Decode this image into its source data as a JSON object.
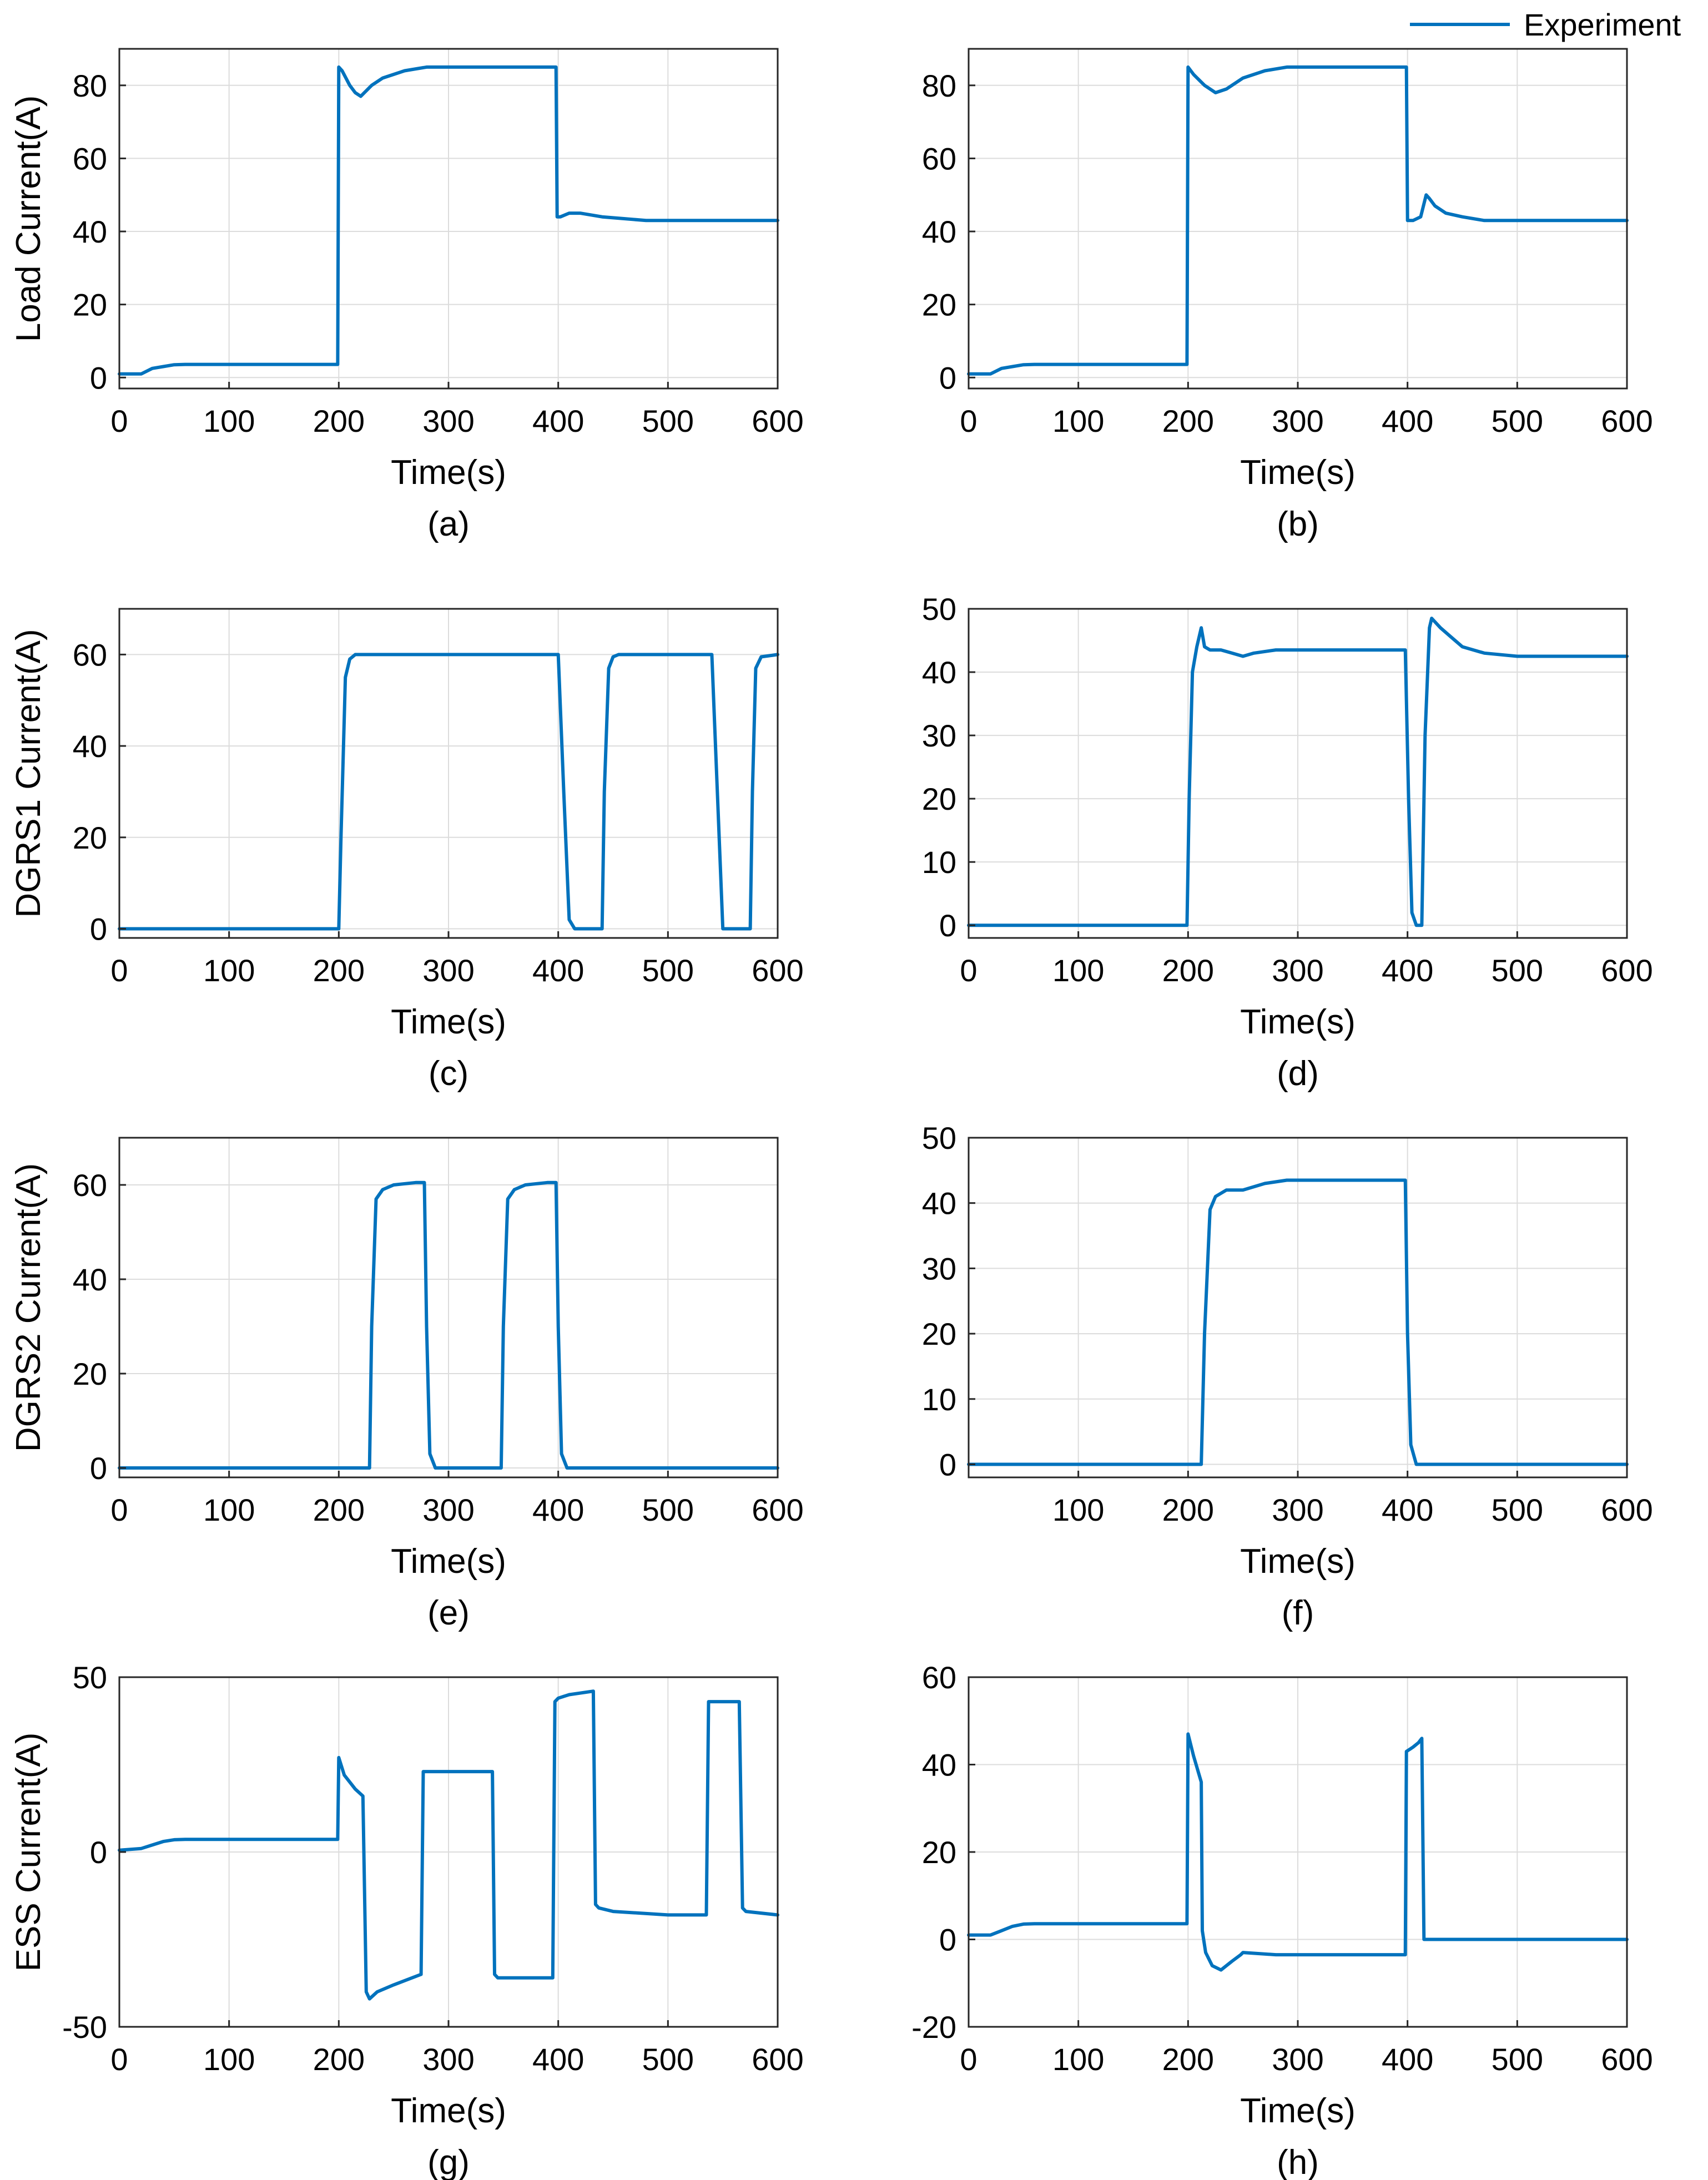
{
  "legend": {
    "label": "Experiment",
    "color": "#0072BD"
  },
  "chart_data": [
    {
      "type": "line",
      "panel_label": "(a)",
      "xlabel": "Time(s)",
      "ylabel": "Load Current(A)",
      "xlim": [
        0,
        600
      ],
      "ylim": [
        -3,
        90
      ],
      "xticks": [
        "0",
        "100",
        "200",
        "300",
        "400",
        "500",
        "600"
      ],
      "xtick_values": [
        0,
        100,
        200,
        300,
        400,
        500,
        600
      ],
      "yticks": [
        "0",
        "20",
        "40",
        "60",
        "80"
      ],
      "ytick_values": [
        0,
        20,
        40,
        60,
        80
      ],
      "grid": true,
      "series": [
        {
          "name": "Experiment",
          "x": [
            0,
            20,
            30,
            40,
            50,
            60,
            100,
            150,
            199,
            200,
            203,
            210,
            215,
            220,
            230,
            240,
            260,
            280,
            300,
            320,
            340,
            360,
            380,
            398,
            399,
            402,
            410,
            420,
            440,
            460,
            480,
            500,
            520,
            540,
            560,
            580,
            600
          ],
          "y": [
            1,
            1,
            2.5,
            3,
            3.5,
            3.6,
            3.6,
            3.6,
            3.6,
            85,
            84,
            80,
            78,
            77,
            80,
            82,
            84,
            85,
            85,
            85,
            85,
            85,
            85,
            85,
            44,
            44,
            45,
            45,
            44,
            43.5,
            43,
            43,
            43,
            43,
            43,
            43,
            43
          ]
        }
      ]
    },
    {
      "type": "line",
      "panel_label": "(b)",
      "xlabel": "Time(s)",
      "ylabel": "",
      "xlim": [
        0,
        600
      ],
      "ylim": [
        -3,
        90
      ],
      "xticks": [
        "0",
        "100",
        "200",
        "300",
        "400",
        "500",
        "600"
      ],
      "xtick_values": [
        0,
        100,
        200,
        300,
        400,
        500,
        600
      ],
      "yticks": [
        "0",
        "20",
        "40",
        "60",
        "80"
      ],
      "ytick_values": [
        0,
        20,
        40,
        60,
        80
      ],
      "grid": true,
      "series": [
        {
          "name": "Experiment",
          "x": [
            0,
            20,
            30,
            40,
            50,
            60,
            100,
            150,
            199,
            200,
            205,
            215,
            225,
            235,
            250,
            270,
            290,
            320,
            350,
            380,
            399,
            400,
            405,
            412,
            417,
            420,
            425,
            435,
            450,
            470,
            500,
            550,
            600
          ],
          "y": [
            1,
            1,
            2.5,
            3,
            3.5,
            3.6,
            3.6,
            3.6,
            3.6,
            85,
            83,
            80,
            78,
            79,
            82,
            84,
            85,
            85,
            85,
            85,
            85,
            43,
            43,
            44,
            50,
            49,
            47,
            45,
            44,
            43,
            43,
            43,
            43
          ]
        }
      ]
    },
    {
      "type": "line",
      "panel_label": "(c)",
      "xlabel": "Time(s)",
      "ylabel": "DGRS1 Current(A)",
      "xlim": [
        0,
        600
      ],
      "ylim": [
        -2,
        70
      ],
      "xticks": [
        "0",
        "100",
        "200",
        "300",
        "400",
        "500",
        "600"
      ],
      "xtick_values": [
        0,
        100,
        200,
        300,
        400,
        500,
        600
      ],
      "yticks": [
        "0",
        "20",
        "40",
        "60"
      ],
      "ytick_values": [
        0,
        20,
        40,
        60
      ],
      "grid": true,
      "series": [
        {
          "name": "Experiment",
          "x": [
            0,
            100,
            200,
            202,
            206,
            210,
            215,
            300,
            400,
            405,
            410,
            415,
            440,
            442,
            446,
            450,
            455,
            500,
            540,
            545,
            550,
            575,
            577,
            580,
            585,
            600
          ],
          "y": [
            0,
            0,
            0,
            20,
            55,
            59,
            60,
            60,
            60,
            30,
            2,
            0,
            0,
            30,
            57,
            59.5,
            60,
            60,
            60,
            30,
            0,
            0,
            30,
            57,
            59.5,
            60
          ]
        }
      ]
    },
    {
      "type": "line",
      "panel_label": "(d)",
      "xlabel": "Time(s)",
      "ylabel": "",
      "xlim": [
        0,
        600
      ],
      "ylim": [
        -2,
        50
      ],
      "xticks": [
        "0",
        "100",
        "200",
        "300",
        "400",
        "500",
        "600"
      ],
      "xtick_values": [
        0,
        100,
        200,
        300,
        400,
        500,
        600
      ],
      "yticks": [
        "0",
        "10",
        "20",
        "30",
        "40",
        "50"
      ],
      "ytick_values": [
        0,
        10,
        20,
        30,
        40,
        50
      ],
      "grid": true,
      "series": [
        {
          "name": "Experiment",
          "x": [
            0,
            100,
            199,
            201,
            204,
            208,
            212,
            215,
            220,
            230,
            240,
            250,
            260,
            280,
            300,
            320,
            340,
            360,
            380,
            398,
            401,
            404,
            408,
            413,
            416,
            420,
            422,
            430,
            440,
            450,
            470,
            500,
            550,
            600
          ],
          "y": [
            0,
            0,
            0,
            20,
            40,
            44,
            47,
            44,
            43.5,
            43.5,
            43,
            42.5,
            43,
            43.5,
            43.5,
            43.5,
            43.5,
            43.5,
            43.5,
            43.5,
            20,
            2,
            0,
            0,
            30,
            47,
            48.5,
            47,
            45.5,
            44,
            43,
            42.5,
            42.5,
            42.5
          ]
        }
      ]
    },
    {
      "type": "line",
      "panel_label": "(e)",
      "xlabel": "Time(s)",
      "ylabel": "DGRS2 Current(A)",
      "xlim": [
        0,
        600
      ],
      "ylim": [
        -2,
        70
      ],
      "xticks": [
        "0",
        "100",
        "200",
        "300",
        "400",
        "500",
        "600"
      ],
      "xtick_values": [
        0,
        100,
        200,
        300,
        400,
        500,
        600
      ],
      "yticks": [
        "0",
        "20",
        "40",
        "60"
      ],
      "ytick_values": [
        0,
        20,
        40,
        60
      ],
      "grid": true,
      "series": [
        {
          "name": "Experiment",
          "x": [
            0,
            100,
            200,
            228,
            230,
            234,
            240,
            250,
            270,
            278,
            280,
            283,
            288,
            295,
            300,
            348,
            350,
            354,
            360,
            370,
            390,
            398,
            400,
            403,
            408,
            415,
            450,
            500,
            550,
            600
          ],
          "y": [
            0,
            0,
            0,
            0,
            30,
            57,
            59,
            60,
            60.5,
            60.5,
            30,
            3,
            0,
            0,
            0,
            0,
            30,
            57,
            59,
            60,
            60.5,
            60.5,
            30,
            3,
            0,
            0,
            0,
            0,
            0,
            0
          ]
        }
      ]
    },
    {
      "type": "line",
      "panel_label": "(f)",
      "xlabel": "Time(s)",
      "ylabel": "",
      "xlim": [
        0,
        600
      ],
      "ylim": [
        -2,
        50
      ],
      "xticks": [
        "100",
        "200",
        "300",
        "400",
        "500",
        "600"
      ],
      "xtick_values": [
        100,
        200,
        300,
        400,
        500,
        600
      ],
      "yticks": [
        "0",
        "10",
        "20",
        "30",
        "40",
        "50"
      ],
      "ytick_values": [
        0,
        10,
        20,
        30,
        40,
        50
      ],
      "grid": true,
      "series": [
        {
          "name": "Experiment",
          "x": [
            0,
            100,
            200,
            212,
            215,
            220,
            225,
            235,
            250,
            270,
            290,
            300,
            320,
            350,
            380,
            398,
            400,
            403,
            408,
            415,
            450,
            500,
            550,
            600
          ],
          "y": [
            0,
            0,
            0,
            0,
            20,
            39,
            41,
            42,
            42,
            43,
            43.5,
            43.5,
            43.5,
            43.5,
            43.5,
            43.5,
            20,
            3,
            0,
            0,
            0,
            0,
            0,
            0
          ]
        }
      ]
    },
    {
      "type": "line",
      "panel_label": "(g)",
      "xlabel": "Time(s)",
      "ylabel": "ESS Current(A)",
      "xlim": [
        0,
        600
      ],
      "ylim": [
        -50,
        50
      ],
      "xticks": [
        "0",
        "100",
        "200",
        "300",
        "400",
        "500",
        "600"
      ],
      "xtick_values": [
        0,
        100,
        200,
        300,
        400,
        500,
        600
      ],
      "yticks": [
        "-50",
        "0",
        "50"
      ],
      "ytick_values": [
        -50,
        0,
        50
      ],
      "grid": true,
      "series": [
        {
          "name": "Experiment",
          "x": [
            0,
            20,
            30,
            40,
            50,
            60,
            100,
            150,
            199,
            200,
            205,
            215,
            222,
            225,
            228,
            235,
            250,
            275,
            277,
            280,
            300,
            340,
            342,
            345,
            370,
            395,
            397,
            400,
            410,
            432,
            434,
            437,
            450,
            500,
            535,
            537,
            540,
            565,
            568,
            571,
            600
          ],
          "y": [
            0.5,
            1,
            2,
            3,
            3.5,
            3.6,
            3.6,
            3.6,
            3.6,
            27,
            22,
            18,
            16,
            -40,
            -42,
            -40,
            -38,
            -35,
            23,
            23,
            23,
            23,
            -35,
            -36,
            -36,
            -36,
            43,
            44,
            45,
            46,
            -15,
            -16,
            -17,
            -18,
            -18,
            43,
            43,
            43,
            -16,
            -17,
            -18
          ]
        }
      ]
    },
    {
      "type": "line",
      "panel_label": "(h)",
      "xlabel": "Time(s)",
      "ylabel": "",
      "xlim": [
        0,
        600
      ],
      "ylim": [
        -20,
        60
      ],
      "xticks": [
        "0",
        "100",
        "200",
        "300",
        "400",
        "500",
        "600"
      ],
      "xtick_values": [
        0,
        100,
        200,
        300,
        400,
        500,
        600
      ],
      "yticks": [
        "-20",
        "0",
        "20",
        "40",
        "60"
      ],
      "ytick_values": [
        -20,
        0,
        20,
        40,
        60
      ],
      "grid": true,
      "series": [
        {
          "name": "Experiment",
          "x": [
            0,
            20,
            30,
            40,
            50,
            60,
            100,
            150,
            199,
            200,
            205,
            212,
            213,
            216,
            222,
            230,
            240,
            248,
            250,
            280,
            320,
            360,
            398,
            399,
            405,
            410,
            413,
            415,
            450,
            500,
            550,
            600
          ],
          "y": [
            1,
            1,
            2,
            3,
            3.5,
            3.6,
            3.6,
            3.6,
            3.6,
            47,
            42,
            36,
            2,
            -3,
            -6,
            -7,
            -5,
            -3.5,
            -3,
            -3.5,
            -3.5,
            -3.5,
            -3.5,
            43,
            44,
            45,
            46,
            0,
            0,
            0,
            0,
            0
          ]
        }
      ]
    }
  ]
}
